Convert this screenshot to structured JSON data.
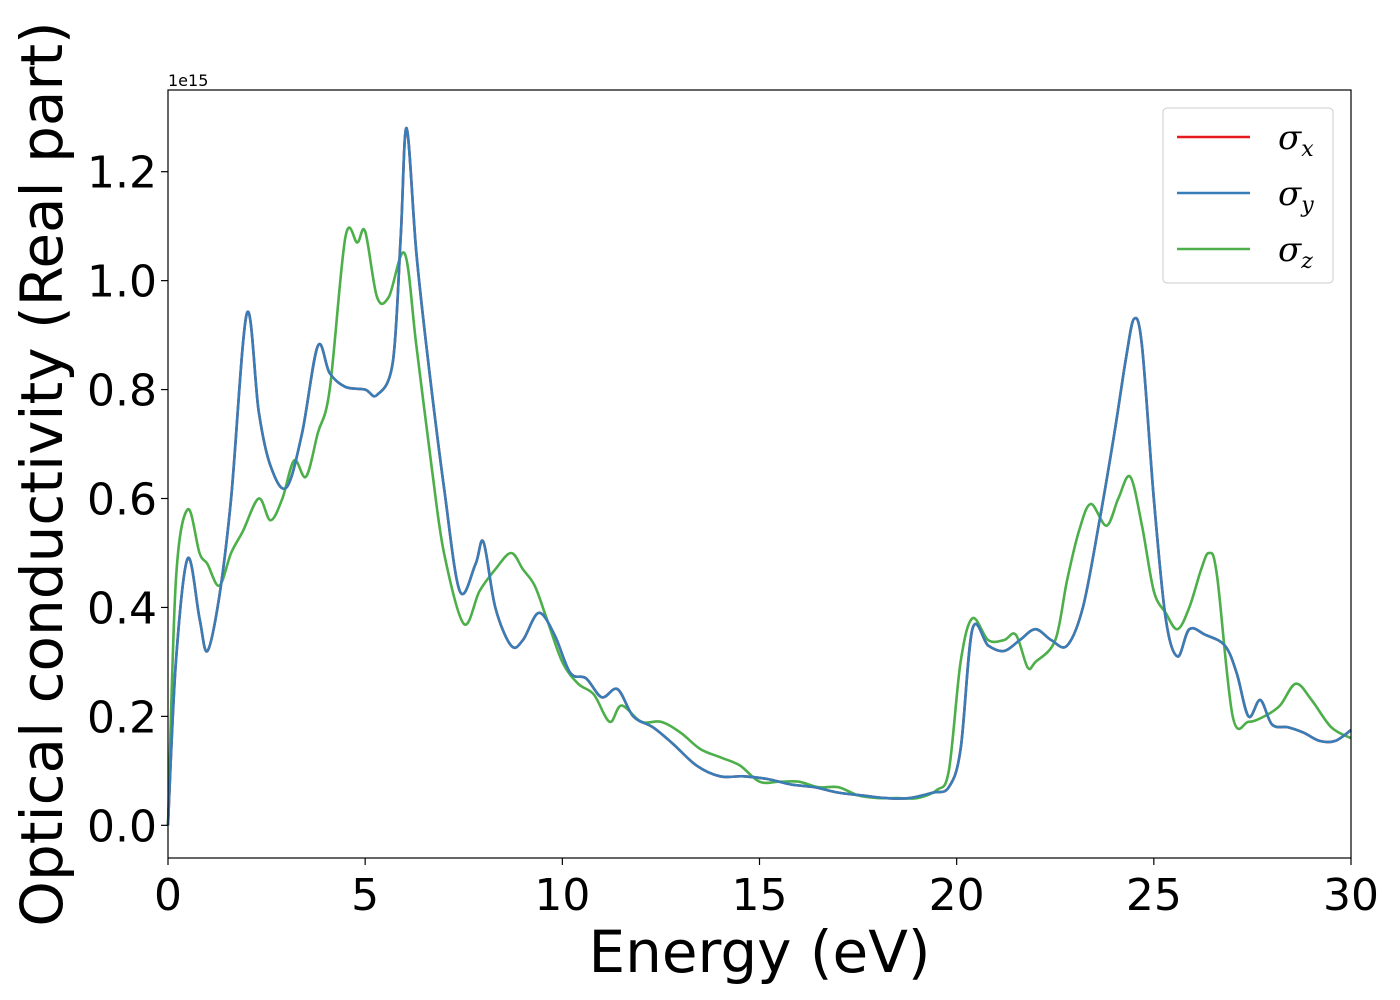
{
  "chart_data": {
    "type": "line",
    "xlabel": "Energy (eV)",
    "ylabel": "Optical conductivity (Real part)",
    "y_offset_text": "1e15",
    "xlim": [
      0,
      30
    ],
    "ylim": [
      -0.06,
      1.35
    ],
    "xticks": [
      0,
      5,
      10,
      15,
      20,
      25,
      30
    ],
    "xtick_labels": [
      "0",
      "5",
      "10",
      "15",
      "20",
      "25",
      "30"
    ],
    "yticks": [
      0.0,
      0.2,
      0.4,
      0.6,
      0.8,
      1.0,
      1.2
    ],
    "ytick_labels": [
      "0.0",
      "0.2",
      "0.4",
      "0.6",
      "0.8",
      "1.0",
      "1.2"
    ],
    "grid": false,
    "legend_position": "upper right",
    "series": [
      {
        "name": "σx",
        "legend_symbol": "σ",
        "legend_sub": "x",
        "color": "#e41a1c",
        "x": [
          0,
          0.2,
          0.5,
          0.8,
          1.0,
          1.3,
          1.6,
          2.0,
          2.3,
          2.6,
          3.0,
          3.4,
          3.8,
          4.1,
          4.5,
          5.0,
          5.3,
          5.7,
          5.9,
          6.05,
          6.3,
          6.6,
          7.0,
          7.4,
          7.8,
          8.0,
          8.3,
          8.7,
          9.0,
          9.4,
          9.8,
          10.2,
          10.6,
          11.0,
          11.4,
          11.8,
          12.3,
          12.8,
          13.4,
          14.0,
          14.6,
          15.2,
          15.8,
          16.4,
          17.0,
          17.6,
          18.2,
          18.8,
          19.4,
          19.8,
          20.1,
          20.4,
          20.8,
          21.2,
          21.6,
          22.0,
          22.4,
          22.8,
          23.2,
          23.6,
          24.0,
          24.3,
          24.5,
          24.7,
          25.0,
          25.3,
          25.6,
          25.9,
          26.3,
          26.8,
          27.1,
          27.4,
          27.7,
          28.0,
          28.4,
          28.8,
          29.2,
          29.6,
          30.0
        ],
        "y": [
          0.0,
          0.3,
          0.49,
          0.38,
          0.32,
          0.42,
          0.6,
          0.94,
          0.76,
          0.66,
          0.62,
          0.72,
          0.88,
          0.83,
          0.805,
          0.8,
          0.79,
          0.85,
          1.08,
          1.28,
          1.05,
          0.85,
          0.62,
          0.43,
          0.48,
          0.52,
          0.4,
          0.33,
          0.34,
          0.39,
          0.35,
          0.28,
          0.27,
          0.235,
          0.25,
          0.2,
          0.18,
          0.15,
          0.11,
          0.09,
          0.09,
          0.085,
          0.075,
          0.07,
          0.06,
          0.055,
          0.05,
          0.05,
          0.06,
          0.07,
          0.14,
          0.36,
          0.33,
          0.32,
          0.34,
          0.36,
          0.34,
          0.33,
          0.4,
          0.55,
          0.72,
          0.86,
          0.93,
          0.88,
          0.6,
          0.38,
          0.31,
          0.36,
          0.35,
          0.33,
          0.28,
          0.2,
          0.23,
          0.185,
          0.18,
          0.17,
          0.155,
          0.155,
          0.175
        ]
      },
      {
        "name": "σy",
        "legend_symbol": "σ",
        "legend_sub": "y",
        "color": "#377eb8",
        "x": [
          0,
          0.2,
          0.5,
          0.8,
          1.0,
          1.3,
          1.6,
          2.0,
          2.3,
          2.6,
          3.0,
          3.4,
          3.8,
          4.1,
          4.5,
          5.0,
          5.3,
          5.7,
          5.9,
          6.05,
          6.3,
          6.6,
          7.0,
          7.4,
          7.8,
          8.0,
          8.3,
          8.7,
          9.0,
          9.4,
          9.8,
          10.2,
          10.6,
          11.0,
          11.4,
          11.8,
          12.3,
          12.8,
          13.4,
          14.0,
          14.6,
          15.2,
          15.8,
          16.4,
          17.0,
          17.6,
          18.2,
          18.8,
          19.4,
          19.8,
          20.1,
          20.4,
          20.8,
          21.2,
          21.6,
          22.0,
          22.4,
          22.8,
          23.2,
          23.6,
          24.0,
          24.3,
          24.5,
          24.7,
          25.0,
          25.3,
          25.6,
          25.9,
          26.3,
          26.8,
          27.1,
          27.4,
          27.7,
          28.0,
          28.4,
          28.8,
          29.2,
          29.6,
          30.0
        ],
        "y": [
          0.0,
          0.3,
          0.49,
          0.38,
          0.32,
          0.42,
          0.6,
          0.94,
          0.76,
          0.66,
          0.62,
          0.72,
          0.88,
          0.83,
          0.805,
          0.8,
          0.79,
          0.85,
          1.08,
          1.28,
          1.05,
          0.85,
          0.62,
          0.43,
          0.48,
          0.52,
          0.4,
          0.33,
          0.34,
          0.39,
          0.35,
          0.28,
          0.27,
          0.235,
          0.25,
          0.2,
          0.18,
          0.15,
          0.11,
          0.09,
          0.09,
          0.085,
          0.075,
          0.07,
          0.06,
          0.055,
          0.05,
          0.05,
          0.06,
          0.07,
          0.14,
          0.36,
          0.33,
          0.32,
          0.34,
          0.36,
          0.34,
          0.33,
          0.4,
          0.55,
          0.72,
          0.86,
          0.93,
          0.88,
          0.6,
          0.38,
          0.31,
          0.36,
          0.35,
          0.33,
          0.28,
          0.2,
          0.23,
          0.185,
          0.18,
          0.17,
          0.155,
          0.155,
          0.175
        ]
      },
      {
        "name": "σz",
        "legend_symbol": "σ",
        "legend_sub": "z",
        "color": "#4daf4a",
        "x": [
          0,
          0.2,
          0.5,
          0.8,
          1.0,
          1.3,
          1.6,
          1.9,
          2.3,
          2.6,
          2.9,
          3.2,
          3.5,
          3.8,
          4.1,
          4.5,
          4.8,
          5.0,
          5.3,
          5.6,
          6.0,
          6.3,
          6.7,
          7.0,
          7.5,
          7.9,
          8.3,
          8.7,
          9.0,
          9.3,
          9.6,
          10.0,
          10.4,
          10.8,
          11.2,
          11.5,
          12.0,
          12.5,
          13.0,
          13.5,
          14.0,
          14.5,
          15.0,
          15.5,
          16.0,
          16.5,
          17.0,
          17.5,
          18.0,
          18.5,
          19.0,
          19.5,
          19.8,
          20.1,
          20.4,
          20.8,
          21.2,
          21.5,
          21.8,
          22.0,
          22.5,
          22.8,
          23.1,
          23.4,
          23.8,
          24.1,
          24.4,
          24.7,
          25.0,
          25.3,
          25.6,
          25.9,
          26.2,
          26.4,
          26.6,
          27.0,
          27.4,
          27.8,
          28.2,
          28.6,
          29.0,
          29.5,
          30.0
        ],
        "y": [
          0.0,
          0.45,
          0.58,
          0.5,
          0.48,
          0.44,
          0.5,
          0.54,
          0.6,
          0.56,
          0.6,
          0.67,
          0.64,
          0.72,
          0.8,
          1.08,
          1.07,
          1.09,
          0.97,
          0.97,
          1.05,
          0.88,
          0.65,
          0.5,
          0.37,
          0.43,
          0.47,
          0.5,
          0.47,
          0.44,
          0.38,
          0.3,
          0.26,
          0.24,
          0.19,
          0.22,
          0.19,
          0.19,
          0.17,
          0.14,
          0.125,
          0.11,
          0.08,
          0.08,
          0.08,
          0.07,
          0.07,
          0.055,
          0.05,
          0.05,
          0.05,
          0.065,
          0.1,
          0.3,
          0.38,
          0.34,
          0.34,
          0.35,
          0.29,
          0.3,
          0.34,
          0.45,
          0.54,
          0.59,
          0.55,
          0.6,
          0.64,
          0.55,
          0.43,
          0.39,
          0.36,
          0.4,
          0.47,
          0.5,
          0.46,
          0.2,
          0.19,
          0.2,
          0.22,
          0.26,
          0.23,
          0.18,
          0.16
        ]
      }
    ]
  }
}
